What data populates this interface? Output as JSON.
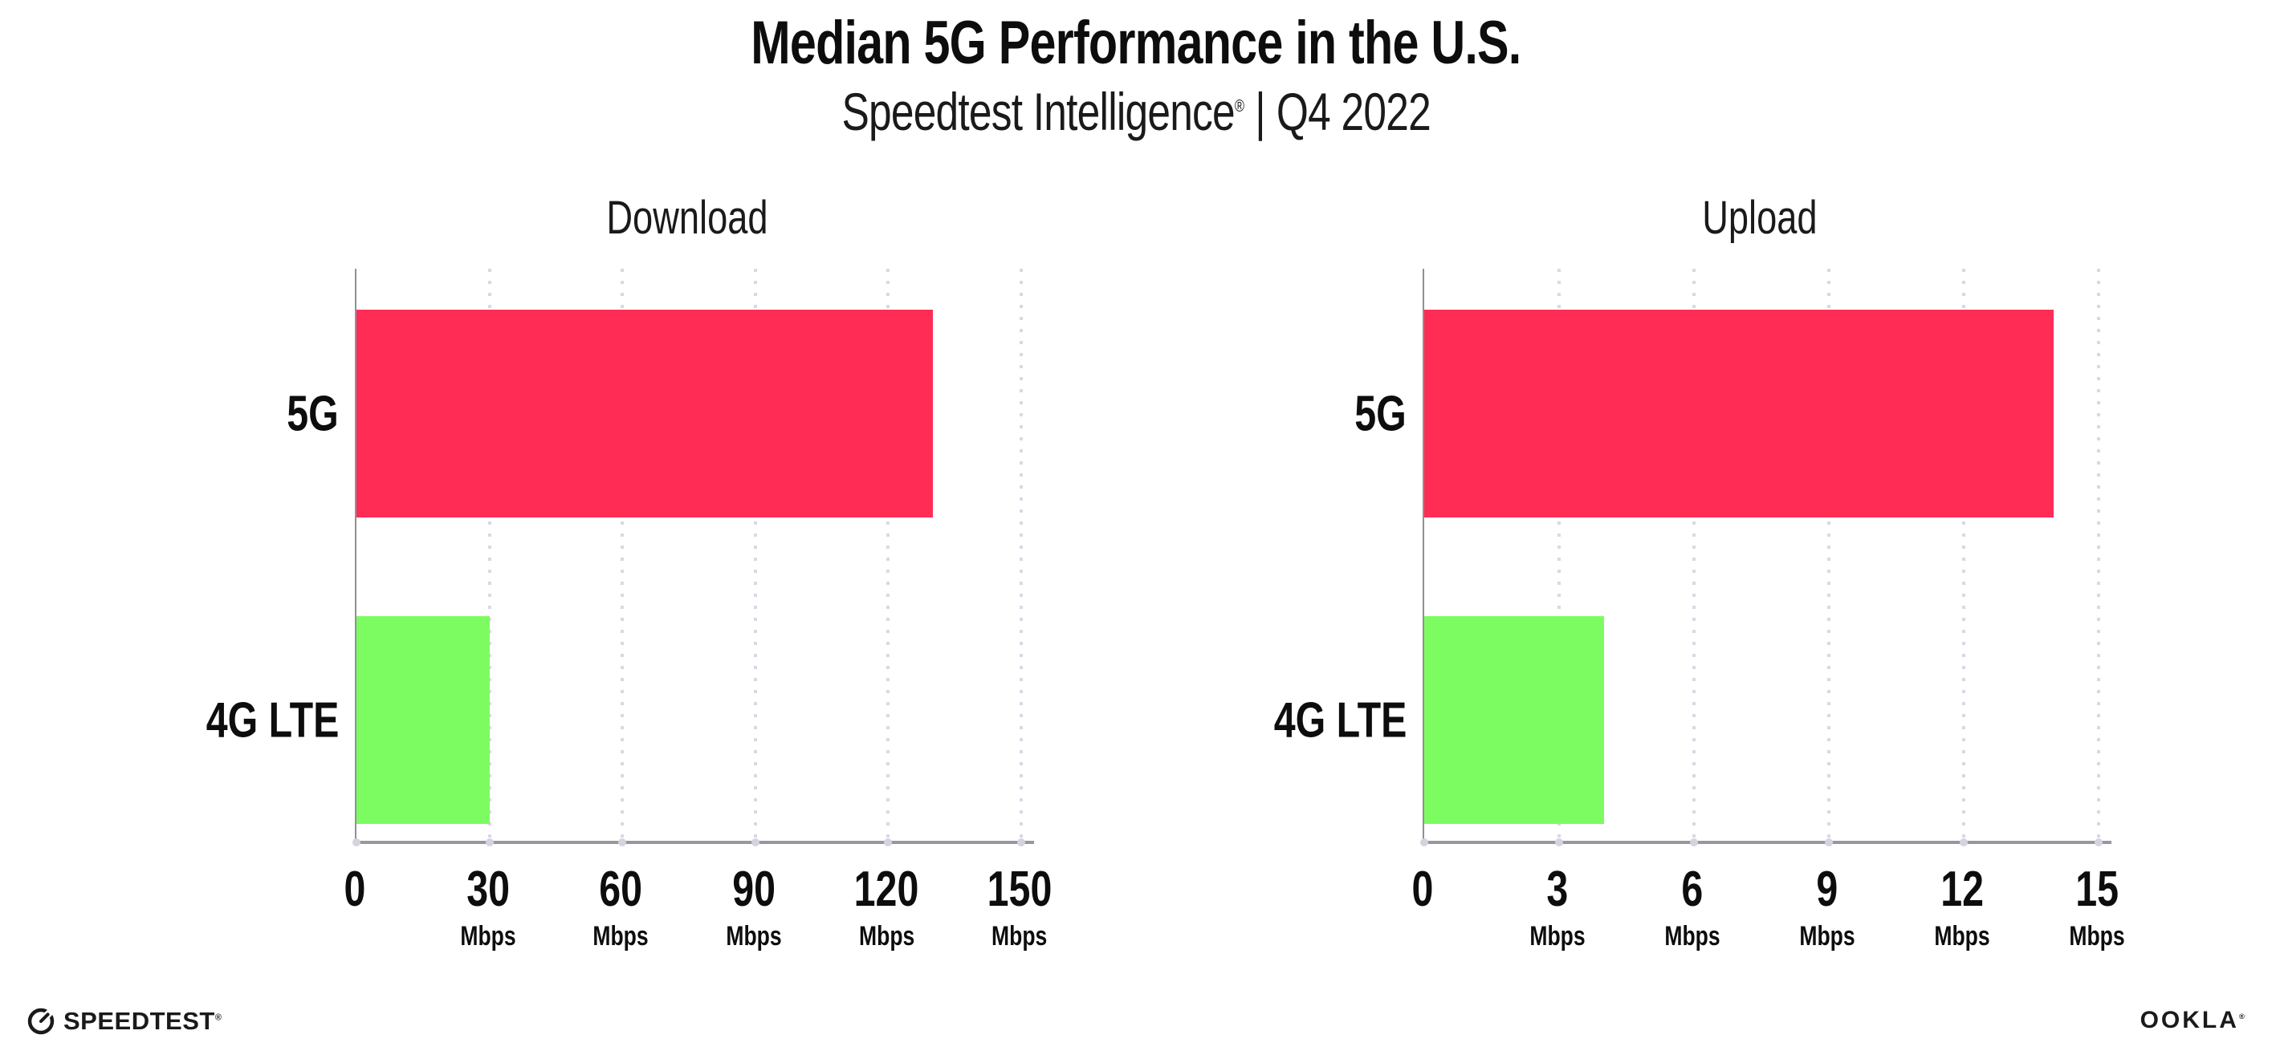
{
  "header": {
    "title": "Median 5G Performance in the U.S.",
    "subtitle_brand": "Speedtest Intelligence",
    "subtitle_reg": "®",
    "subtitle_divider": "|",
    "subtitle_period": "Q4 2022"
  },
  "footer": {
    "speedtest_logo_text": "SPEEDTEST",
    "speedtest_reg": "®",
    "ookla_logo_text": "OOKLA",
    "ookla_reg": "®"
  },
  "colors": {
    "bar_5g": "#ff2d55",
    "bar_4g_lte": "#7dfc62",
    "axis": "#97979f",
    "grid_dot": "#d9d9e4",
    "text": "#0d0d0d"
  },
  "chart_data": [
    {
      "type": "bar",
      "orientation": "horizontal",
      "title": "Download",
      "categories": [
        "5G",
        "4G LTE"
      ],
      "values": [
        130,
        30
      ],
      "unit": "Mbps",
      "xlim": [
        0,
        150
      ],
      "ticks": [
        0,
        30,
        60,
        90,
        120,
        150
      ],
      "bar_colors": [
        "#ff2d55",
        "#7dfc62"
      ],
      "grid": "dotted-vertical"
    },
    {
      "type": "bar",
      "orientation": "horizontal",
      "title": "Upload",
      "categories": [
        "5G",
        "4G LTE"
      ],
      "values": [
        14,
        4
      ],
      "unit": "Mbps",
      "xlim": [
        0,
        15
      ],
      "ticks": [
        0,
        3,
        6,
        9,
        12,
        15
      ],
      "bar_colors": [
        "#ff2d55",
        "#7dfc62"
      ],
      "grid": "dotted-vertical"
    }
  ]
}
